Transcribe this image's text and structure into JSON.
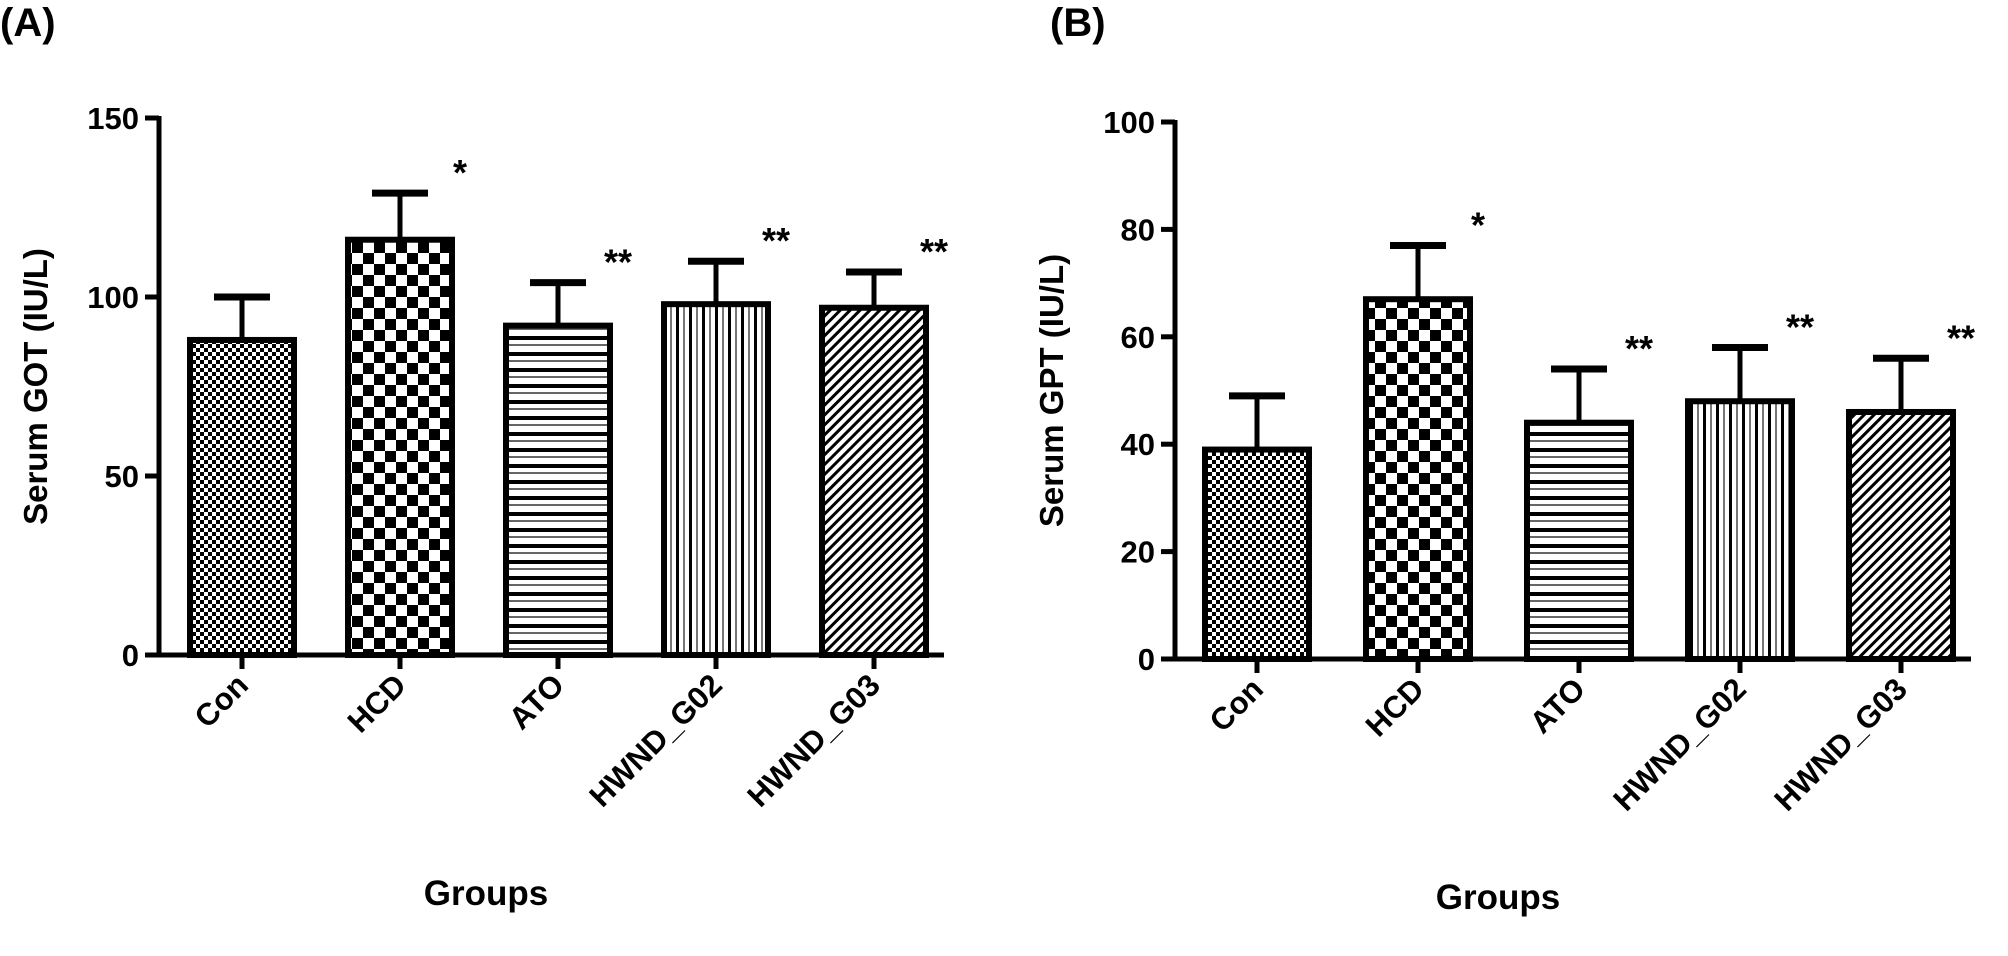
{
  "chart_data": [
    {
      "type": "bar",
      "panel_label": "(A)",
      "categories": [
        "Con",
        "HCD",
        "ATO",
        "HWND_G02",
        "HWND_G03"
      ],
      "values": [
        88,
        116,
        92,
        98,
        97
      ],
      "error_upper": [
        100,
        129,
        104,
        110,
        107
      ],
      "significance": [
        "",
        "*",
        "**",
        "**",
        "**"
      ],
      "patterns": [
        "fine-check",
        "checkerboard",
        "horizontal-lines",
        "vertical-lines",
        "diagonal-hatch"
      ],
      "xlabel": "Groups",
      "ylabel": "Serum GOT (IU/L)",
      "ylim": [
        0,
        150
      ],
      "yticks": [
        0,
        50,
        100,
        150
      ],
      "grid": false
    },
    {
      "type": "bar",
      "panel_label": "(B)",
      "categories": [
        "Con",
        "HCD",
        "ATO",
        "HWND_G02",
        "HWND_G03"
      ],
      "values": [
        39,
        67,
        44,
        48,
        46
      ],
      "error_upper": [
        49,
        77,
        54,
        58,
        56
      ],
      "significance": [
        "",
        "*",
        "**",
        "**",
        "**"
      ],
      "patterns": [
        "fine-check",
        "checkerboard",
        "horizontal-lines",
        "vertical-lines",
        "diagonal-hatch"
      ],
      "xlabel": "Groups",
      "ylabel": "Serum GPT (IU/L)",
      "ylim": [
        0,
        100
      ],
      "yticks": [
        0,
        20,
        40,
        60,
        80,
        100
      ],
      "grid": false
    }
  ],
  "colors": {
    "ink": "#000000",
    "background": "#ffffff"
  }
}
